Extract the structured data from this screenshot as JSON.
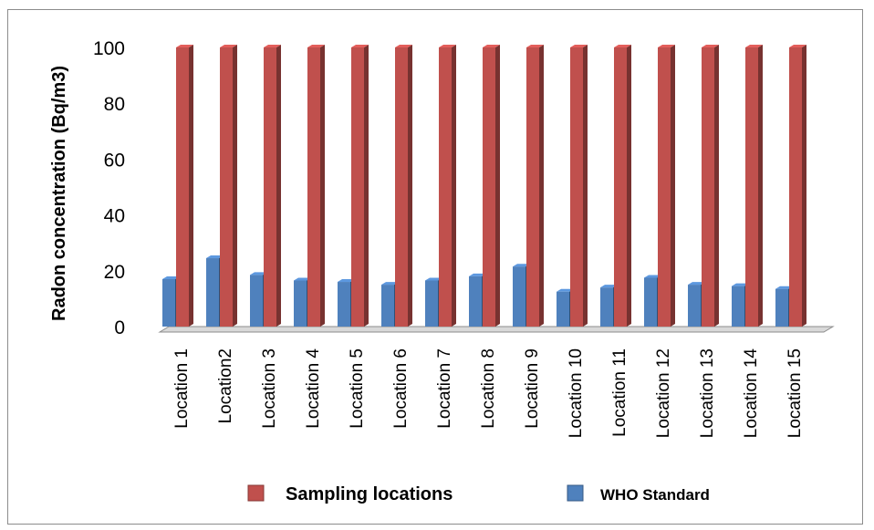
{
  "chart_data": {
    "type": "bar",
    "style": "3d-clustered-column",
    "ylabel": "Radon concentration (Bq/m3)",
    "ylim": [
      0,
      100
    ],
    "yticks": [
      0,
      20,
      40,
      60,
      80,
      100
    ],
    "categories": [
      "Location 1",
      "Location2",
      "Location 3",
      "Location 4",
      "Location 5",
      "Location 6",
      "Location 7",
      "Location 8",
      "Location 9",
      "Location 10",
      "Location 11",
      "Location 12",
      "Location 13",
      "Location 14",
      "Location 15"
    ],
    "series": [
      {
        "name": "WHO Standard",
        "color": "#4f81bd",
        "values": [
          17,
          24.5,
          18.5,
          16.5,
          16,
          15,
          16.5,
          18,
          21.5,
          12.5,
          14,
          17.5,
          15,
          14.5,
          13.5
        ]
      },
      {
        "name": "Sampling locations",
        "color": "#c0504d",
        "values": [
          100,
          100,
          100,
          100,
          100,
          100,
          100,
          100,
          100,
          100,
          100,
          100,
          100,
          100,
          100
        ]
      }
    ],
    "legend": {
      "position": "bottom",
      "items": [
        {
          "label": "Sampling locations",
          "color": "#c0504d"
        },
        {
          "label": "WHO Standard",
          "color": "#4f81bd"
        }
      ]
    }
  }
}
